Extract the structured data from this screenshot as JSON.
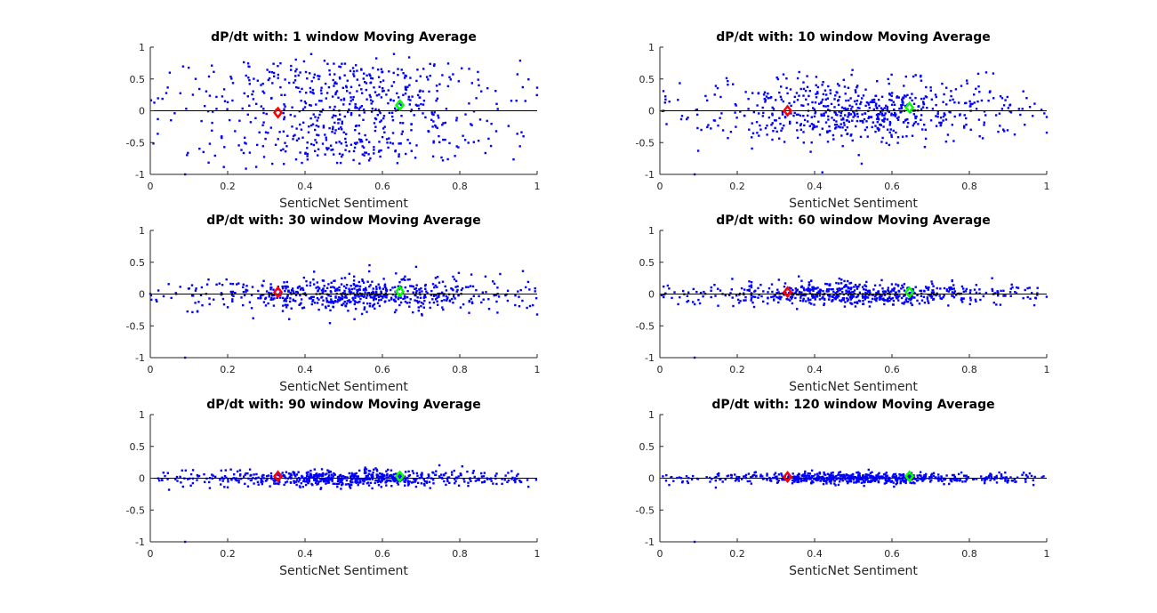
{
  "colors": {
    "points": "#0000ff",
    "marker_red": "#ff0000",
    "marker_green": "#00ff00",
    "zero_line": "#000000",
    "axes": "#262626"
  },
  "chart_data": [
    {
      "type": "scatter",
      "title": "dP/dt with: 1 window Moving Average",
      "xlabel": "SenticNet Sentiment",
      "ylabel": "",
      "xlim": [
        0,
        1
      ],
      "ylim": [
        -1,
        1
      ],
      "xticks": [
        "0",
        "0.2",
        "0.4",
        "0.6",
        "0.8",
        "1"
      ],
      "yticks": [
        "1",
        "0.5",
        "0",
        "-0.5",
        "-1"
      ],
      "grid": false,
      "series": [
        {
          "marker": "dot",
          "color": "#0000ff",
          "n_points": 650,
          "x_range": [
            0,
            1
          ],
          "y_spread": 1.0
        },
        {
          "marker": "diamond",
          "color": "#ff0000",
          "x": [
            0.33
          ],
          "y": [
            -0.03
          ]
        },
        {
          "marker": "diamond",
          "color": "#00ff00",
          "x": [
            0.645
          ],
          "y": [
            0.09
          ]
        }
      ],
      "reference_line": {
        "y": 0
      }
    },
    {
      "type": "scatter",
      "title": "dP/dt with: 10 window Moving Average",
      "xlabel": "SenticNet Sentiment",
      "ylabel": "",
      "xlim": [
        0,
        1
      ],
      "ylim": [
        -1,
        1
      ],
      "xticks": [
        "0",
        "0.2",
        "0.4",
        "0.6",
        "0.8",
        "1"
      ],
      "yticks": [
        "1",
        "0.5",
        "0",
        "-0.5",
        "-1"
      ],
      "grid": false,
      "series": [
        {
          "marker": "dot",
          "color": "#0000ff",
          "n_points": 650,
          "x_range": [
            0,
            1
          ],
          "y_spread": 0.55
        },
        {
          "marker": "diamond",
          "color": "#ff0000",
          "x": [
            0.33
          ],
          "y": [
            0.0
          ]
        },
        {
          "marker": "diamond",
          "color": "#00ff00",
          "x": [
            0.645
          ],
          "y": [
            0.05
          ]
        }
      ],
      "reference_line": {
        "y": 0
      }
    },
    {
      "type": "scatter",
      "title": "dP/dt with: 30 window Moving Average",
      "xlabel": "SenticNet Sentiment",
      "ylabel": "",
      "xlim": [
        0,
        1
      ],
      "ylim": [
        -1,
        1
      ],
      "xticks": [
        "0",
        "0.2",
        "0.4",
        "0.6",
        "0.8",
        "1"
      ],
      "yticks": [
        "1",
        "0.5",
        "0",
        "-0.5",
        "-1"
      ],
      "grid": false,
      "series": [
        {
          "marker": "dot",
          "color": "#0000ff",
          "n_points": 650,
          "x_range": [
            0,
            1
          ],
          "y_spread": 0.3
        },
        {
          "marker": "diamond",
          "color": "#ff0000",
          "x": [
            0.33
          ],
          "y": [
            0.03
          ]
        },
        {
          "marker": "diamond",
          "color": "#00ff00",
          "x": [
            0.645
          ],
          "y": [
            0.04
          ]
        }
      ],
      "reference_line": {
        "y": 0
      }
    },
    {
      "type": "scatter",
      "title": "dP/dt with: 60 window Moving Average",
      "xlabel": "SenticNet Sentiment",
      "ylabel": "",
      "xlim": [
        0,
        1
      ],
      "ylim": [
        -1,
        1
      ],
      "xticks": [
        "0",
        "0.2",
        "0.4",
        "0.6",
        "0.8",
        "1"
      ],
      "yticks": [
        "1",
        "0.5",
        "0",
        "-0.5",
        "-1"
      ],
      "grid": false,
      "series": [
        {
          "marker": "dot",
          "color": "#0000ff",
          "n_points": 650,
          "x_range": [
            0,
            1
          ],
          "y_spread": 0.2
        },
        {
          "marker": "diamond",
          "color": "#ff0000",
          "x": [
            0.33
          ],
          "y": [
            0.03
          ]
        },
        {
          "marker": "diamond",
          "color": "#00ff00",
          "x": [
            0.645
          ],
          "y": [
            0.03
          ]
        }
      ],
      "reference_line": {
        "y": 0
      }
    },
    {
      "type": "scatter",
      "title": "dP/dt with: 90 window Moving Average",
      "xlabel": "SenticNet Sentiment",
      "ylabel": "",
      "xlim": [
        0,
        1
      ],
      "ylim": [
        -1,
        1
      ],
      "xticks": [
        "0",
        "0.2",
        "0.4",
        "0.6",
        "0.8",
        "1"
      ],
      "yticks": [
        "1",
        "0.5",
        "0",
        "-0.5",
        "-1"
      ],
      "grid": false,
      "series": [
        {
          "marker": "dot",
          "color": "#0000ff",
          "n_points": 650,
          "x_range": [
            0,
            1
          ],
          "y_spread": 0.14
        },
        {
          "marker": "diamond",
          "color": "#ff0000",
          "x": [
            0.33
          ],
          "y": [
            0.03
          ]
        },
        {
          "marker": "diamond",
          "color": "#00ff00",
          "x": [
            0.645
          ],
          "y": [
            0.03
          ]
        }
      ],
      "reference_line": {
        "y": 0
      }
    },
    {
      "type": "scatter",
      "title": "dP/dt with: 120 window Moving Average",
      "xlabel": "SenticNet Sentiment",
      "ylabel": "",
      "xlim": [
        0,
        1
      ],
      "ylim": [
        -1,
        1
      ],
      "xticks": [
        "0",
        "0.2",
        "0.4",
        "0.6",
        "0.8",
        "1"
      ],
      "yticks": [
        "1",
        "0.5",
        "0",
        "-0.5",
        "-1"
      ],
      "grid": false,
      "series": [
        {
          "marker": "dot",
          "color": "#0000ff",
          "n_points": 650,
          "x_range": [
            0,
            1
          ],
          "y_spread": 0.1
        },
        {
          "marker": "diamond",
          "color": "#ff0000",
          "x": [
            0.33
          ],
          "y": [
            0.02
          ]
        },
        {
          "marker": "diamond",
          "color": "#00ff00",
          "x": [
            0.645
          ],
          "y": [
            0.03
          ]
        }
      ],
      "reference_line": {
        "y": 0
      }
    }
  ]
}
